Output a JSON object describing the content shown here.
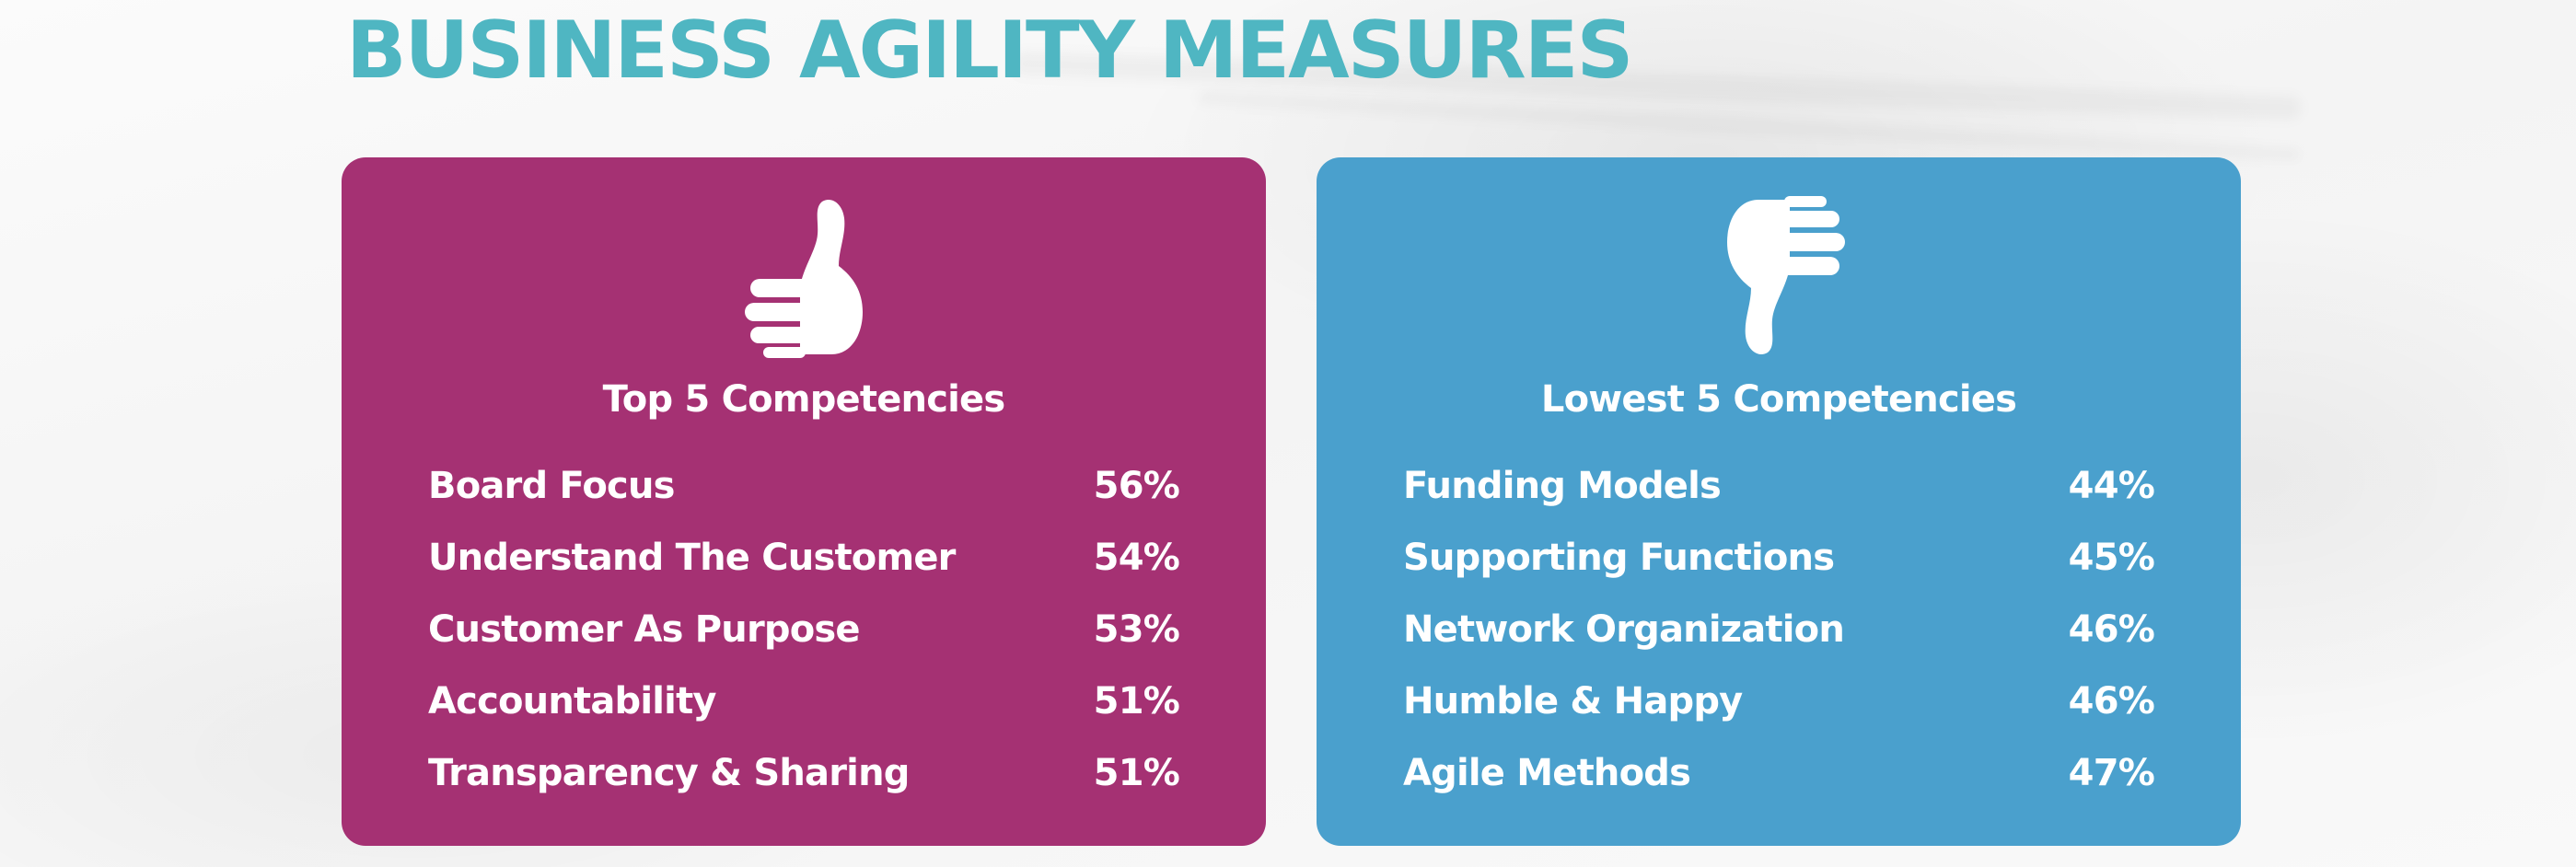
{
  "title": "BUSINESS AGILITY MEASURES",
  "colors": {
    "title": "#4fb6c2",
    "top_panel": "#a53173",
    "low_panel": "#4aa0cd",
    "text": "#ffffff"
  },
  "top": {
    "icon": "thumbs-up-icon",
    "heading": "Top 5 Competencies",
    "items": [
      {
        "label": "Board Focus",
        "value": "56%"
      },
      {
        "label": "Understand The Customer",
        "value": "54%"
      },
      {
        "label": "Customer As Purpose",
        "value": "53%"
      },
      {
        "label": "Accountability",
        "value": "51%"
      },
      {
        "label": "Transparency & Sharing",
        "value": "51%"
      }
    ]
  },
  "low": {
    "icon": "thumbs-down-icon",
    "heading": "Lowest 5 Competencies",
    "items": [
      {
        "label": "Funding Models",
        "value": "44%"
      },
      {
        "label": "Supporting Functions",
        "value": "45%"
      },
      {
        "label": "Network Organization",
        "value": "46%"
      },
      {
        "label": "Humble & Happy",
        "value": "46%"
      },
      {
        "label": "Agile Methods",
        "value": "47%"
      }
    ]
  }
}
